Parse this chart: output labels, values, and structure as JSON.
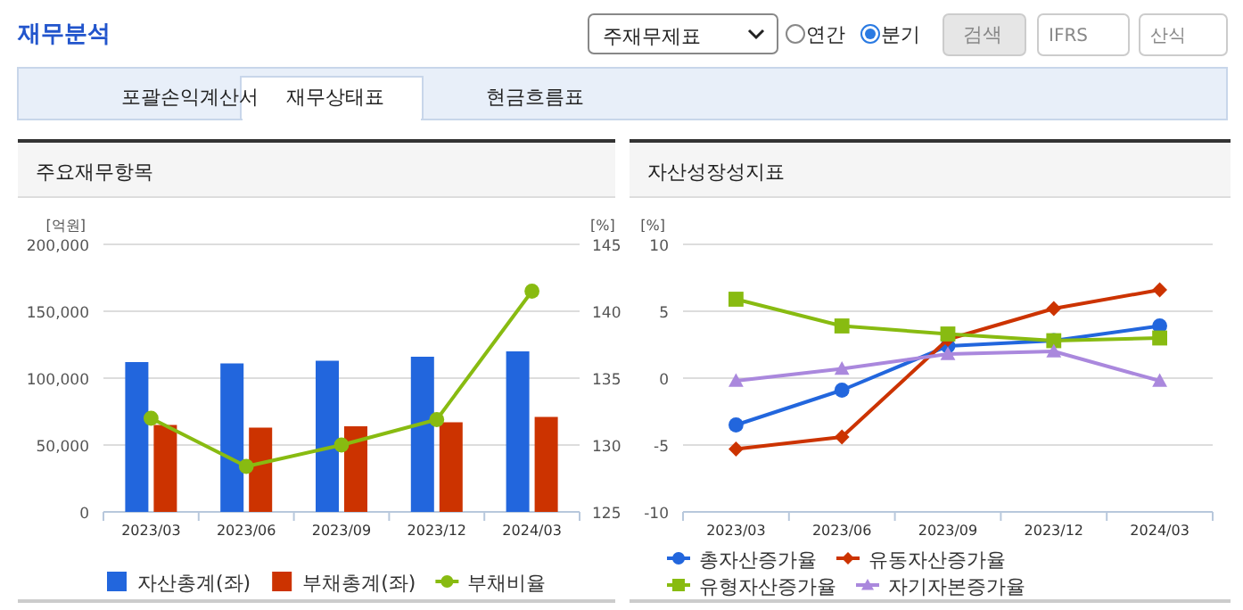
{
  "chart_data": [
    {
      "type": "other",
      "annotations": [
        "재무분석",
        "주재무제표",
        "연간",
        "분기",
        "검색",
        "IFRS",
        "산식",
        "포괄손익계산서",
        "재무상태표",
        "현금흐름표"
      ]
    },
    {
      "type": "bar",
      "title": "주요재무항목",
      "ylabel": "[억원]",
      "y2label": "[%]",
      "categories": [
        "2023/03",
        "2023/06",
        "2023/09",
        "2023/12",
        "2024/03"
      ],
      "series": [
        {
          "name": "자산총계(좌)",
          "color": "#2266dd",
          "values": [
            112000,
            111000,
            113000,
            116000,
            120000
          ]
        },
        {
          "name": "부채총계(좌)",
          "color": "#cc3300",
          "values": [
            65000,
            63000,
            64000,
            67000,
            71000
          ]
        },
        {
          "name": "부채비율",
          "type": "line",
          "axis": "y2",
          "marker": "circle",
          "color": "#88bb11",
          "values": [
            132.0,
            128.4,
            130.0,
            131.9,
            141.5
          ]
        }
      ],
      "ylim": [
        0,
        200000
      ],
      "yticks": [
        0,
        {
          "value": 50000,
          "label": "50,000"
        },
        {
          "value": 100000,
          "label": "100,000"
        },
        {
          "value": 150000,
          "label": "150,000"
        },
        {
          "value": 200000,
          "label": "200,000"
        }
      ],
      "y2lim": [
        125,
        145
      ],
      "y2ticks": [
        125,
        130,
        135,
        140,
        145
      ],
      "grid": "y",
      "legend": "bottom"
    },
    {
      "type": "line",
      "title": "자산성장성지표",
      "ylabel": "[%]",
      "categories": [
        "2023/03",
        "2023/06",
        "2023/09",
        "2023/12",
        "2024/03"
      ],
      "series": [
        {
          "name": "총자산증가율",
          "color": "#2266dd",
          "marker": "circle",
          "values": [
            -3.5,
            -0.9,
            2.4,
            2.8,
            3.9
          ]
        },
        {
          "name": "유동자산증가율",
          "color": "#cc3300",
          "marker": "diamond",
          "values": [
            -5.3,
            -4.4,
            2.9,
            5.2,
            6.6
          ]
        },
        {
          "name": "유형자산증가율",
          "color": "#88bb11",
          "marker": "square",
          "values": [
            5.9,
            3.9,
            3.3,
            2.8,
            3.0
          ]
        },
        {
          "name": "자기자본증가율",
          "color": "#aa88dd",
          "marker": "triangle",
          "values": [
            -0.2,
            0.7,
            1.8,
            2.0,
            -0.2
          ]
        }
      ],
      "ylim": [
        -10,
        10
      ],
      "yticks": [
        -10,
        -5,
        0,
        5,
        10
      ],
      "grid": "y",
      "legend": "bottom"
    }
  ]
}
